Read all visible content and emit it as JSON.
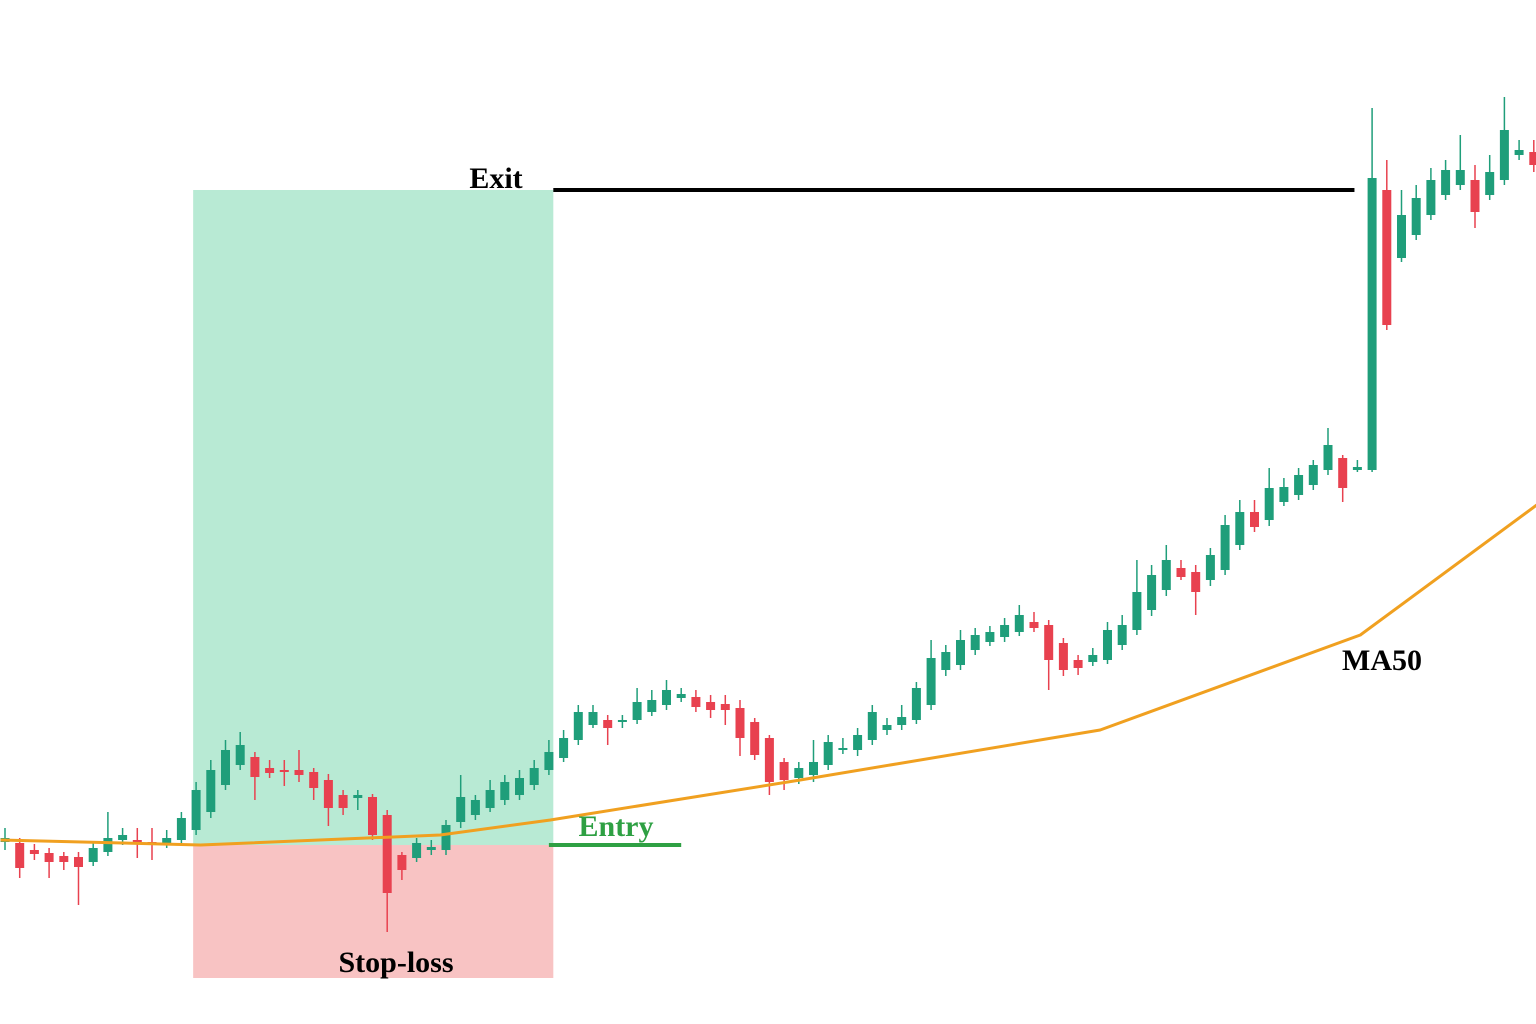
{
  "chart_data": {
    "type": "candlestick",
    "up_color": "#1f9e7a",
    "down_color": "#e8414f",
    "xlim": [
      -0.34,
      104.15
    ],
    "ylim": [
      0,
      1024
    ],
    "open": [
      182,
      181,
      174,
      171,
      168,
      167,
      162,
      172,
      184,
      184,
      182,
      181,
      184,
      194,
      212,
      239,
      259,
      267,
      256,
      254,
      254,
      252,
      244,
      229,
      226,
      227,
      209,
      169,
      166,
      174,
      174,
      202,
      209,
      216,
      224,
      229,
      239,
      254,
      266,
      284,
      299,
      304,
      302,
      304,
      312,
      319,
      326,
      327,
      322,
      320,
      316,
      302,
      286,
      262,
      246,
      249,
      259,
      274,
      274,
      284,
      294,
      299,
      304,
      319,
      354,
      359,
      374,
      382,
      387,
      392,
      402,
      399,
      381,
      364,
      362,
      364,
      379,
      394,
      414,
      434,
      456,
      452,
      444,
      454,
      479,
      512,
      504,
      522,
      529,
      539,
      554,
      566,
      554,
      554,
      834,
      766,
      789,
      809,
      829,
      839,
      844,
      829,
      844,
      869,
      872
    ],
    "high": [
      196,
      186,
      180,
      176,
      172,
      172,
      182,
      212,
      196,
      196,
      196,
      194,
      212,
      242,
      264,
      284,
      292,
      272,
      264,
      264,
      274,
      256,
      250,
      234,
      234,
      230,
      214,
      172,
      186,
      184,
      204,
      249,
      229,
      244,
      249,
      254,
      264,
      284,
      294,
      319,
      319,
      309,
      309,
      336,
      334,
      344,
      336,
      334,
      329,
      329,
      324,
      306,
      289,
      266,
      262,
      284,
      289,
      286,
      296,
      319,
      306,
      319,
      342,
      384,
      379,
      394,
      396,
      398,
      406,
      419,
      412,
      404,
      386,
      369,
      376,
      402,
      409,
      464,
      459,
      479,
      464,
      459,
      476,
      509,
      524,
      524,
      556,
      546,
      556,
      564,
      596,
      569,
      564,
      916,
      864,
      834,
      839,
      856,
      864,
      889,
      859,
      869,
      927,
      884,
      884
    ],
    "low": [
      174,
      146,
      164,
      146,
      154,
      119,
      158,
      168,
      179,
      166,
      164,
      176,
      179,
      189,
      206,
      234,
      254,
      224,
      246,
      238,
      242,
      224,
      198,
      209,
      214,
      184,
      92,
      144,
      162,
      169,
      169,
      196,
      204,
      212,
      219,
      224,
      234,
      249,
      262,
      279,
      296,
      279,
      296,
      300,
      308,
      314,
      322,
      312,
      306,
      299,
      268,
      264,
      229,
      234,
      240,
      242,
      254,
      270,
      268,
      279,
      289,
      294,
      300,
      314,
      348,
      354,
      369,
      378,
      382,
      388,
      392,
      334,
      348,
      349,
      358,
      360,
      374,
      389,
      408,
      428,
      444,
      409,
      438,
      449,
      474,
      492,
      498,
      518,
      524,
      534,
      549,
      522,
      552,
      552,
      694,
      762,
      784,
      804,
      824,
      834,
      796,
      824,
      839,
      864,
      852
    ],
    "close": [
      186,
      156,
      170,
      162,
      162,
      157,
      176,
      186,
      189,
      181,
      181,
      186,
      206,
      234,
      254,
      274,
      279,
      247,
      251,
      252,
      249,
      236,
      216,
      216,
      229,
      189,
      131,
      154,
      181,
      177,
      199,
      227,
      224,
      234,
      242,
      246,
      256,
      272,
      286,
      312,
      312,
      296,
      304,
      322,
      324,
      334,
      330,
      317,
      314,
      314,
      286,
      269,
      242,
      244,
      256,
      262,
      282,
      276,
      289,
      312,
      299,
      307,
      336,
      366,
      372,
      384,
      389,
      392,
      399,
      409,
      396,
      364,
      354,
      356,
      369,
      394,
      399,
      432,
      449,
      464,
      447,
      432,
      469,
      499,
      512,
      497,
      536,
      537,
      549,
      559,
      579,
      536,
      557,
      846,
      699,
      809,
      826,
      844,
      854,
      854,
      812,
      852,
      894,
      874,
      859
    ],
    "series": [
      {
        "name": "MA50",
        "color": "#f0a020",
        "x": [
          -0.3,
          13.3,
          29.6,
          37.1,
          54.1,
          74.5,
          92.2,
          104.2
        ],
        "values": [
          184,
          179,
          189,
          204,
          244,
          294,
          389,
          519
        ]
      }
    ],
    "annotations": [
      {
        "label": "Exit",
        "value": 834,
        "x": [
          37.3,
          91.8
        ]
      },
      {
        "label": "Entry",
        "value": 179,
        "x": [
          37.0,
          46.0
        ]
      },
      {
        "label": "Stop-loss",
        "value": 46,
        "x": [
          12.8,
          37.3
        ]
      }
    ]
  }
}
